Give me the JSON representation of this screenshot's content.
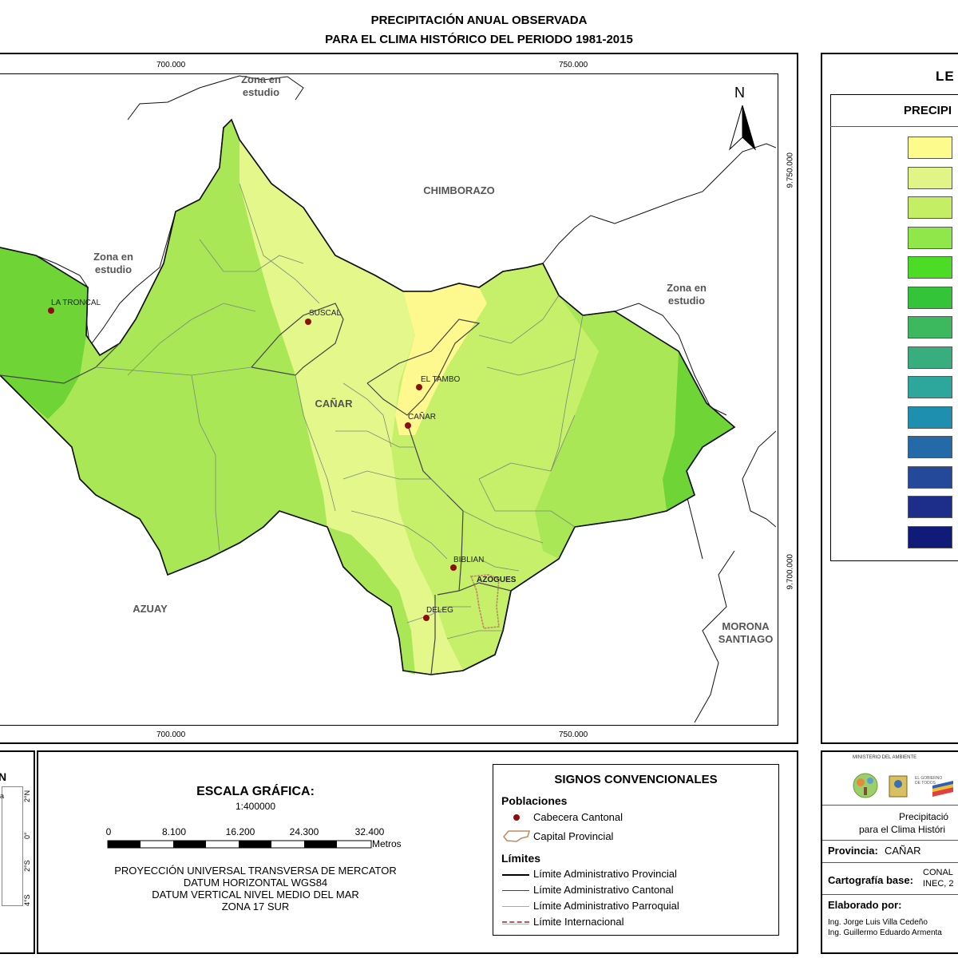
{
  "title": {
    "line1": "PRECIPITACIÓN ANUAL OBSERVADA",
    "line2": "PARA EL CLIMA HISTÓRICO DEL PERIODO 1981-2015"
  },
  "map": {
    "x_ticks": [
      "700.000",
      "750.000"
    ],
    "y_ticks": [
      "9.750.000",
      "9.700.000"
    ],
    "north": "N",
    "labels": {
      "zona_top": "Zona en estudio",
      "zona_left": "Zona en estudio",
      "zona_right": "Zona en estudio",
      "chimborazo": "CHIMBORAZO",
      "canar": "CAÑAR",
      "azuay": "AZUAY",
      "morona": "MORONA SANTIAGO"
    },
    "towns": [
      {
        "name": "LA TRONCAL"
      },
      {
        "name": "SUSCAL"
      },
      {
        "name": "EL TAMBO"
      },
      {
        "name": "CAÑAR"
      },
      {
        "name": "BIBLIAN"
      },
      {
        "name": "AZOGUES"
      },
      {
        "name": "DELEG"
      }
    ],
    "colors": {
      "pale_yellow": "#fdf98e",
      "yellow_green": "#e4f78a",
      "light_green": "#c6ef6a",
      "green": "#9fe24a",
      "bright_green": "#6fd933"
    }
  },
  "legend": {
    "title": "LEYENDA",
    "title_visible": "LE",
    "subtitle_visible": "PRECIPI",
    "swatches": [
      "#fdfb8c",
      "#e0f585",
      "#c4ee63",
      "#8fe74a",
      "#4ddc25",
      "#33c43a",
      "#3cb95e",
      "#38ad7e",
      "#2da69b",
      "#1f8fb0",
      "#246aa8",
      "#24489a",
      "#1d2e8a",
      "#101a78"
    ]
  },
  "inset": {
    "label": "N",
    "label2": "la",
    "lat_labels": [
      "2°N",
      "0°",
      "2°S",
      "4°S"
    ]
  },
  "scale": {
    "title": "ESCALA GRÁFICA:",
    "ratio": "1:400000",
    "ticks": [
      "0",
      "8.100",
      "16.200",
      "24.300",
      "32.400"
    ],
    "unit": "Metros",
    "projection": [
      "PROYECCIÓN UNIVERSAL TRANSVERSA DE MERCATOR",
      "DATUM HORIZONTAL WGS84",
      "DATUM VERTICAL NIVEL MEDIO DEL MAR",
      "ZONA 17 SUR"
    ]
  },
  "signos": {
    "title": "SIGNOS CONVENCIONALES",
    "poblaciones": "Poblaciones",
    "cabecera": "Cabecera Cantonal",
    "capital": "Capital Provincial",
    "limites": "Límites",
    "lim_prov": "Límite Administrativo Provincial",
    "lim_cant": "Límite Administrativo Cantonal",
    "lim_parr": "Límite Administrativo Parroquial",
    "lim_int": "Límite Internacional"
  },
  "info": {
    "ministerio": "MINISTERIO DEL AMBIENTE",
    "gobierno": "EL GOBIERNO DE TODOS",
    "desc1": "Precipitació",
    "desc2": "para el Clima Históri",
    "provincia_label": "Provincia:",
    "provincia_value": "CAÑAR",
    "cartografia_label": "Cartografía base:",
    "cartografia_value1": "CONAL",
    "cartografia_value2": "INEC, 2",
    "elaborado_label": "Elaborado por:",
    "autor1": "Ing. Jorge Luis Villa Cedeño",
    "autor2": "Ing. Guillermo Eduardo Armenta"
  }
}
